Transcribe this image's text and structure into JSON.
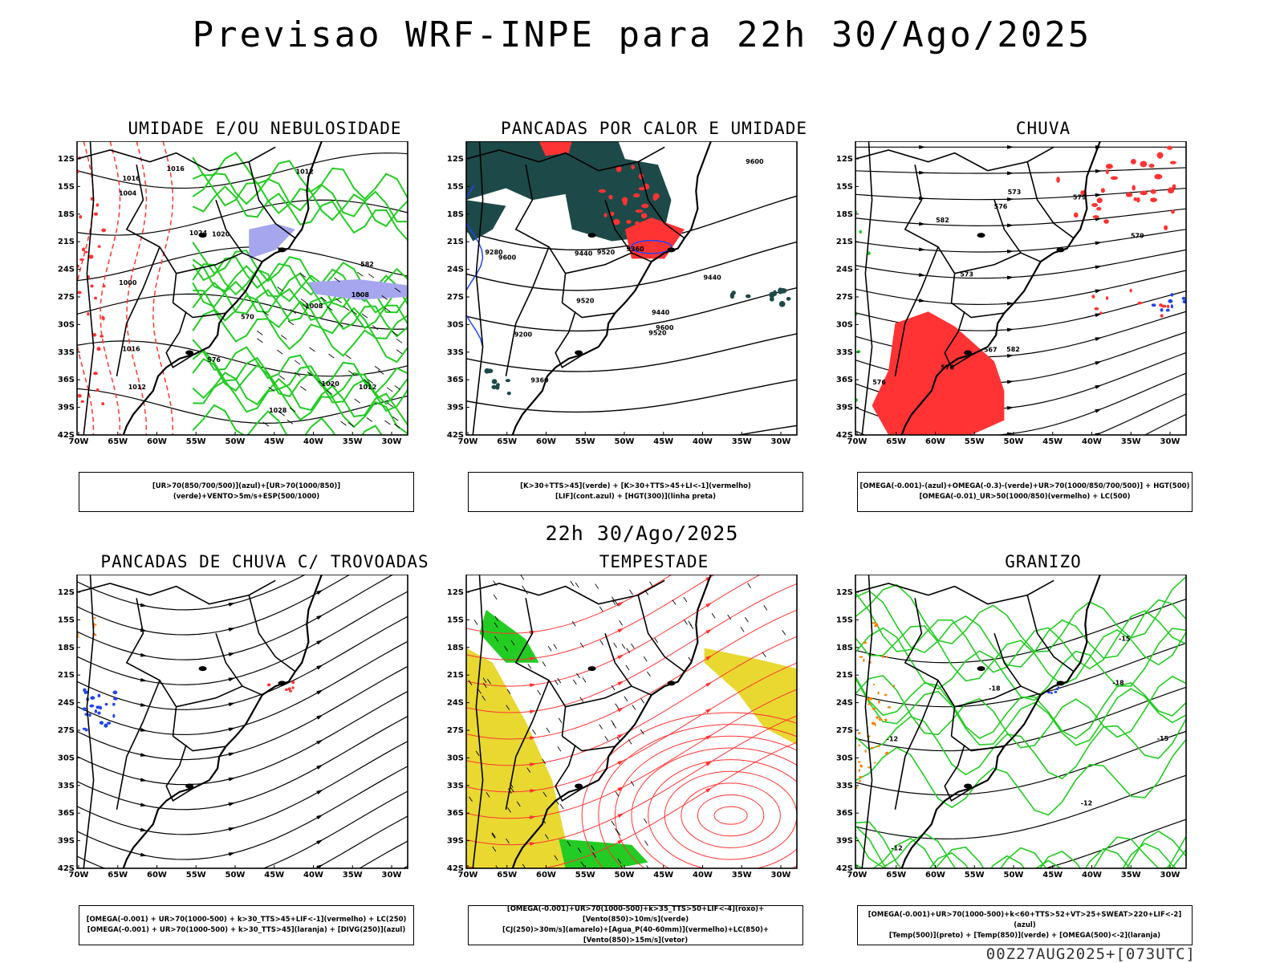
{
  "title": "Previsao WRF-INPE  para 22h 30/Ago/2025",
  "mid_time": "22h 30/Ago/2025",
  "footer": "00Z27AUG2025+[073UTC]",
  "lat_ticks": [
    "12S",
    "15S",
    "18S",
    "21S",
    "24S",
    "27S",
    "30S",
    "33S",
    "36S",
    "39S",
    "42S"
  ],
  "lon_ticks": [
    "70W",
    "65W",
    "60W",
    "55W",
    "50W",
    "45W",
    "40W",
    "35W",
    "30W"
  ],
  "panels": [
    {
      "title": "UMIDADE E/OU NEBULOSIDADE",
      "legend": [
        "[UR>70(850/700/500)](azul)+[UR>70(1000/850)](verde)+VENTO>5m/s+ESP(500/1000)"
      ],
      "contour_labels": [
        "1008",
        "1008",
        "1012",
        "1016",
        "1020",
        "1020",
        "1016",
        "1012",
        "1024",
        "1028",
        "1004",
        "1000",
        "1016",
        "1012",
        "576",
        "582",
        "570"
      ]
    },
    {
      "title": "PANCADAS POR CALOR E UMIDADE",
      "legend": [
        "[K>30+TTS>45](verde) + [K>30+TTS>45+LI<-1](vermelho)",
        "[LIF](cont.azul) + [HGT(300)](linha preta)"
      ],
      "contour_labels": [
        "9600",
        "9600",
        "9600",
        "9520",
        "9520",
        "9520",
        "9440",
        "9440",
        "9440",
        "9360",
        "9360",
        "9280",
        "9200"
      ]
    },
    {
      "title": "CHUVA",
      "legend": [
        "[OMEGA(-0.001)-(azul)+OMEGA(-0.3)-(verde)+UR>70(1000/850/700/500)] + HGT(500)",
        "[OMEGA(-0.01)_UR>50(1000/850)(vermelho) + LC(500)"
      ],
      "contour_labels": [
        "582",
        "582",
        "579",
        "579",
        "576",
        "576",
        "576",
        "573",
        "573",
        "567"
      ]
    },
    {
      "title": "PANCADAS DE CHUVA C/ TROVOADAS",
      "legend": [
        "[OMEGA(-0.001) + UR>70(1000-500) + k>30_TTS>45+LIF<-1](vermelho) + LC(250)",
        "[OMEGA(-0.001) + UR>70(1000-500) + k>30_TTS>45](laranja) + [DIVG(250)](azul)"
      ],
      "contour_labels": []
    },
    {
      "title": "TEMPESTADE",
      "legend": [
        "[OMEGA(-0.001)+UR>70(1000-500)+k>35_TTS>50+LIF<-4](roxo)+[Vento(850)>10m/s](verde)",
        "[CJ(250)>30m/s](amarelo)+[Agua_P(40-60mm)](vermelho)+LC(850)+[Vento(850)>15m/s](vetor)"
      ],
      "contour_labels": []
    },
    {
      "title": "GRANIZO",
      "legend": [
        "[OMEGA(-0.001)+UR>70(1000-500)+k<60+TTS>52+VT>25+SWEAT>220+LIF<-2](azul)",
        "[Temp(500)](preto) + [Temp(850)](verde) + [OMEGA(500)<-2](laranja)"
      ],
      "contour_labels": [
        "-12",
        "-12",
        "-12",
        "-15",
        "-15",
        "-18",
        "-18"
      ]
    }
  ],
  "colors": {
    "coast": "#000000",
    "humidity_green": "#22cc22",
    "humidity_blue": "#a6a6ee",
    "red": "#ff3333",
    "dark_teal": "#1d4a48",
    "yellow": "#e8d830",
    "orange": "#ff7f00",
    "blue": "#2244ee"
  }
}
